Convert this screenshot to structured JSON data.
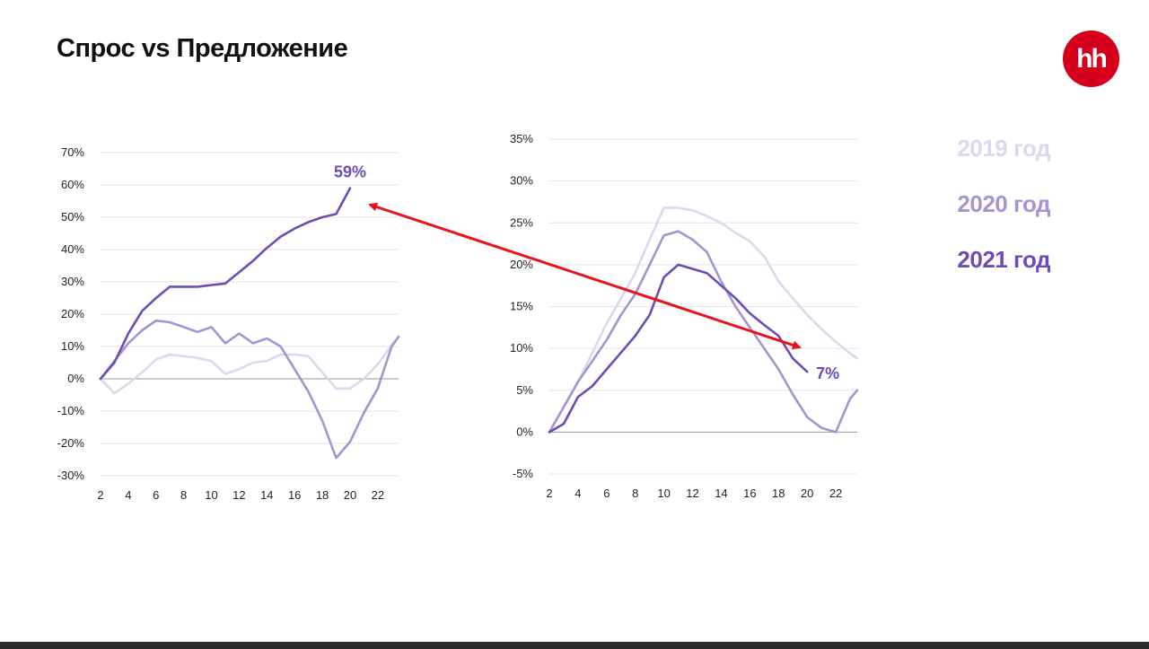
{
  "page": {
    "title": "Спрос vs Предложение",
    "logo_text": "hh",
    "accent": "#d6001c"
  },
  "legend": [
    {
      "label": "2019 год",
      "color": "#ddd6ef"
    },
    {
      "label": "2020 год",
      "color": "#a593d2"
    },
    {
      "label": "2021 год",
      "color": "#6e4cb6"
    }
  ],
  "chart_data": [
    {
      "type": "line",
      "ylim": [
        -30,
        70
      ],
      "yticks": [
        "70%",
        "60%",
        "50%",
        "40%",
        "30%",
        "20%",
        "10%",
        "0%",
        "-10%",
        "-20%",
        "-30%"
      ],
      "ytick_values": [
        70,
        60,
        50,
        40,
        30,
        20,
        10,
        0,
        -10,
        -20,
        -30
      ],
      "xlim": [
        2,
        23.5
      ],
      "xticks": [
        "2",
        "4",
        "6",
        "8",
        "10",
        "12",
        "14",
        "16",
        "18",
        "20",
        "22"
      ],
      "xtick_values": [
        2,
        4,
        6,
        8,
        10,
        12,
        14,
        16,
        18,
        20,
        22
      ],
      "grid": true,
      "series": [
        {
          "color": "#ddd6ef",
          "x": [
            2,
            3,
            4,
            5,
            6,
            7,
            8,
            9,
            10,
            11,
            12,
            13,
            14,
            15,
            16,
            17,
            18,
            19,
            20,
            21,
            22,
            23,
            23.5
          ],
          "values": [
            0,
            -4.5,
            -1.5,
            2,
            6,
            7.5,
            7,
            6.5,
            5.5,
            1.5,
            3,
            5,
            5.5,
            7.5,
            7.5,
            7,
            2,
            -3,
            -3,
            0,
            4.5,
            10.5,
            13
          ]
        },
        {
          "color": "#a593d2",
          "x": [
            2,
            3,
            4,
            5,
            6,
            7,
            8,
            9,
            10,
            11,
            12,
            13,
            14,
            15,
            16,
            17,
            18,
            19,
            20,
            21,
            22,
            23,
            23.5
          ],
          "values": [
            0,
            5.5,
            11,
            15,
            18,
            17.5,
            16,
            14.5,
            16,
            11,
            14,
            11,
            12.5,
            10,
            3,
            -4,
            -13,
            -24.5,
            -19.5,
            -10.5,
            -3,
            10,
            13
          ]
        },
        {
          "color": "#6e4cb6",
          "x": [
            2,
            3,
            4,
            5,
            6,
            7,
            8,
            9,
            10,
            11,
            12,
            13,
            14,
            15,
            16,
            17,
            18,
            19,
            20
          ],
          "values": [
            0,
            5,
            14,
            21,
            25,
            28.5,
            28.5,
            28.5,
            29,
            29.5,
            33,
            36.5,
            40.5,
            44,
            46.5,
            48.5,
            50,
            51,
            59
          ]
        }
      ],
      "annotation": "59%"
    },
    {
      "type": "line",
      "ylim": [
        -5,
        35
      ],
      "yticks": [
        "35%",
        "30%",
        "25%",
        "20%",
        "15%",
        "10%",
        "5%",
        "0%",
        "-5%"
      ],
      "ytick_values": [
        35,
        30,
        25,
        20,
        15,
        10,
        5,
        0,
        -5
      ],
      "xlim": [
        2,
        23.5
      ],
      "xticks": [
        "2",
        "4",
        "6",
        "8",
        "10",
        "12",
        "14",
        "16",
        "18",
        "20",
        "22"
      ],
      "xtick_values": [
        2,
        4,
        6,
        8,
        10,
        12,
        14,
        16,
        18,
        20,
        22
      ],
      "grid": true,
      "series": [
        {
          "color": "#ddd6ef",
          "x": [
            2,
            3,
            4,
            5,
            6,
            7,
            8,
            9,
            10,
            11,
            12,
            13,
            14,
            15,
            16,
            17,
            18,
            19,
            20,
            21,
            22,
            23,
            23.5
          ],
          "values": [
            0,
            3,
            6,
            9.5,
            13,
            16,
            19,
            23,
            26.8,
            26.8,
            26.5,
            25.8,
            25,
            23.8,
            22.8,
            21,
            18,
            16,
            14,
            12.3,
            10.8,
            9.4,
            8.8
          ]
        },
        {
          "color": "#a593d2",
          "x": [
            2,
            3,
            4,
            5,
            6,
            7,
            8,
            9,
            10,
            11,
            12,
            13,
            14,
            15,
            16,
            17,
            18,
            19,
            20,
            21,
            22,
            23,
            23.5
          ],
          "values": [
            0,
            3,
            6,
            8.5,
            11,
            14,
            16.5,
            20,
            23.5,
            24,
            23,
            21.5,
            18,
            15,
            12.5,
            10,
            7.5,
            4.5,
            1.8,
            0.5,
            0,
            4,
            5
          ]
        },
        {
          "color": "#6e4cb6",
          "x": [
            2,
            3,
            4,
            5,
            6,
            7,
            8,
            9,
            10,
            11,
            12,
            13,
            14,
            15,
            16,
            17,
            18,
            19,
            20
          ],
          "values": [
            0,
            1,
            4.2,
            5.5,
            7.5,
            9.5,
            11.5,
            14,
            18.5,
            20,
            19.5,
            19,
            17.5,
            16,
            14.2,
            12.8,
            11.5,
            8.8,
            7.2
          ]
        }
      ],
      "annotation": "7%"
    }
  ]
}
